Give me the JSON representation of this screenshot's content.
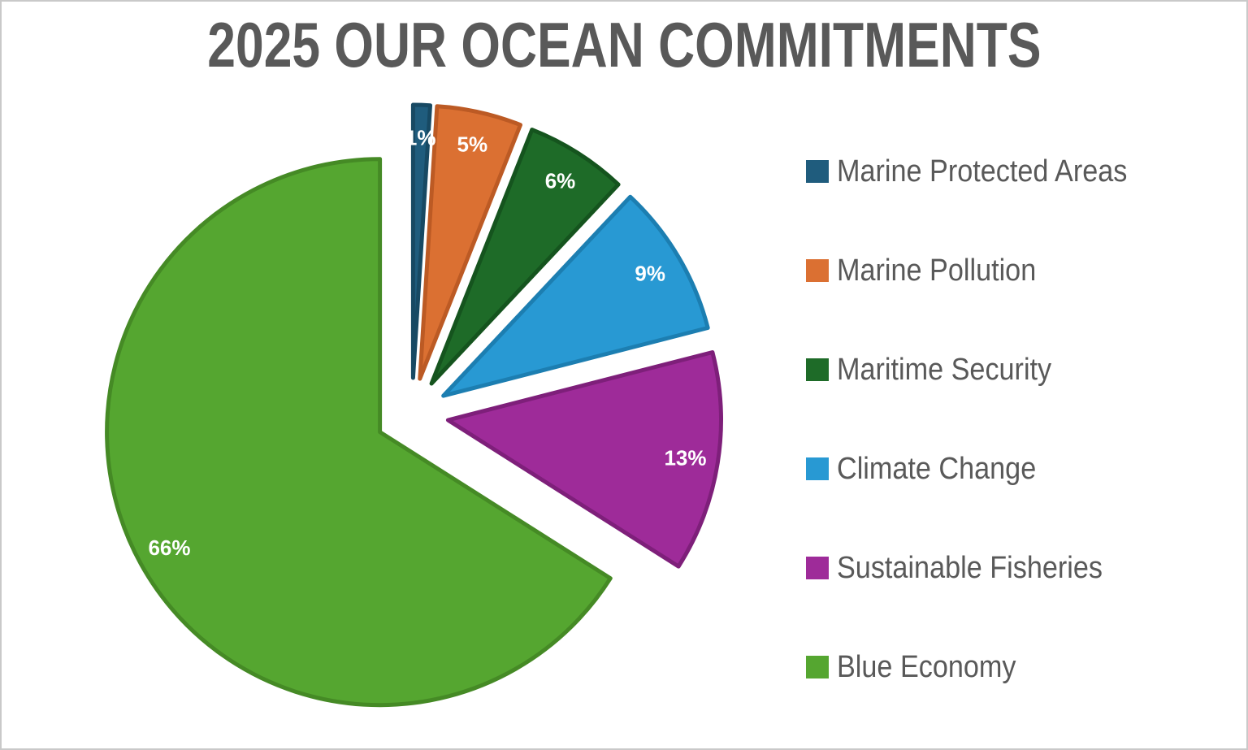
{
  "page": {
    "background_color": "#ffffff",
    "border_color": "#c9c9c9"
  },
  "chart_data": {
    "type": "pie",
    "title": "2025 OUR OCEAN COMMITMENTS",
    "title_color": "#595959",
    "legend_position": "right",
    "legend_text_color": "#595959",
    "data_label_color": "#ffffff",
    "start_angle_deg": 0,
    "direction": "clockwise",
    "exploded": true,
    "values_unit": "%",
    "total": 100,
    "slices": [
      {
        "label": "Marine Protected Areas",
        "value": 1,
        "display": "1%",
        "color": "#1F5C7D",
        "edge": "#174963"
      },
      {
        "label": "Marine Pollution",
        "value": 5,
        "display": "5%",
        "color": "#DB7032",
        "edge": "#BC5A24"
      },
      {
        "label": "Maritime Security",
        "value": 6,
        "display": "6%",
        "color": "#1E6B28",
        "edge": "#15541E"
      },
      {
        "label": "Climate Change",
        "value": 9,
        "display": "9%",
        "color": "#2899D3",
        "edge": "#1C7EB1"
      },
      {
        "label": "Sustainable Fisheries",
        "value": 13,
        "display": "13%",
        "color": "#9E2B99",
        "edge": "#7E1F7A"
      },
      {
        "label": "Blue Economy",
        "value": 66,
        "display": "66%",
        "color": "#55A630",
        "edge": "#458A25"
      }
    ]
  }
}
